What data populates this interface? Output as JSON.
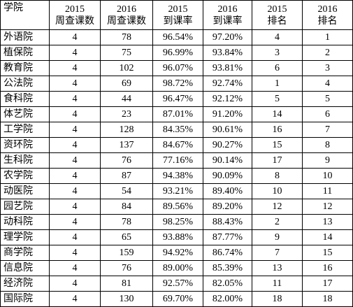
{
  "table": {
    "header": [
      [
        "学院"
      ],
      [
        "2015",
        "周查课数"
      ],
      [
        "2016",
        "周查课数"
      ],
      [
        "2015",
        "到课率"
      ],
      [
        "2016",
        "到课率"
      ],
      [
        "2015",
        "排名"
      ],
      [
        "2016",
        "排名"
      ]
    ],
    "rows": [
      [
        "外语院",
        "4",
        "78",
        "96.54%",
        "97.20%",
        "4",
        "1"
      ],
      [
        "植保院",
        "4",
        "75",
        "96.99%",
        "93.84%",
        "3",
        "2"
      ],
      [
        "教育院",
        "4",
        "102",
        "96.07%",
        "93.81%",
        "6",
        "3"
      ],
      [
        "公法院",
        "4",
        "69",
        "98.72%",
        "92.74%",
        "1",
        "4"
      ],
      [
        "食科院",
        "4",
        "44",
        "96.47%",
        "92.12%",
        "5",
        "5"
      ],
      [
        "体艺院",
        "4",
        "23",
        "87.01%",
        "91.20%",
        "14",
        "6"
      ],
      [
        "工学院",
        "4",
        "128",
        "84.35%",
        "90.61%",
        "16",
        "7"
      ],
      [
        "资环院",
        "4",
        "137",
        "84.67%",
        "90.27%",
        "15",
        "8"
      ],
      [
        "生科院",
        "4",
        "76",
        "77.16%",
        "90.14%",
        "17",
        "9"
      ],
      [
        "农学院",
        "4",
        "87",
        "94.38%",
        "90.09%",
        "8",
        "10"
      ],
      [
        "动医院",
        "4",
        "54",
        "93.21%",
        "89.40%",
        "10",
        "11"
      ],
      [
        "园艺院",
        "4",
        "84",
        "89.56%",
        "89.20%",
        "12",
        "12"
      ],
      [
        "动科院",
        "4",
        "78",
        "98.25%",
        "88.43%",
        "2",
        "13"
      ],
      [
        "理学院",
        "4",
        "65",
        "93.88%",
        "87.77%",
        "9",
        "14"
      ],
      [
        "商学院",
        "4",
        "159",
        "94.92%",
        "86.74%",
        "7",
        "15"
      ],
      [
        "信息院",
        "4",
        "76",
        "89.00%",
        "85.39%",
        "13",
        "16"
      ],
      [
        "经济院",
        "4",
        "81",
        "92.57%",
        "82.05%",
        "11",
        "17"
      ],
      [
        "国际院",
        "4",
        "130",
        "69.70%",
        "82.00%",
        "18",
        "18"
      ]
    ]
  }
}
